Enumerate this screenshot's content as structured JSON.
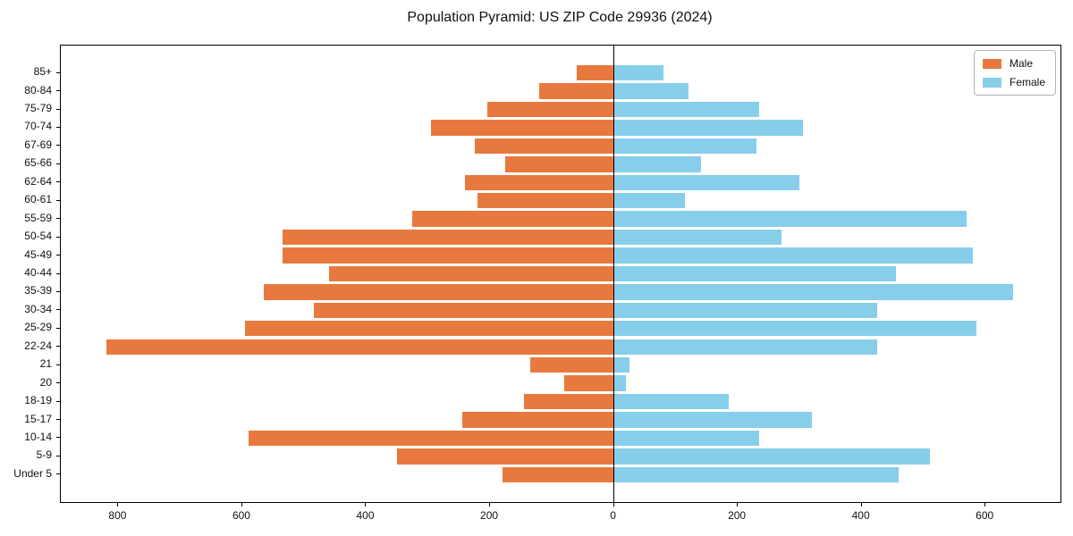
{
  "title": "Population Pyramid: US ZIP Code 29936 (2024)",
  "legend": {
    "male": "Male",
    "female": "Female"
  },
  "colors": {
    "male": "#e8793e",
    "female": "#87ceeb",
    "axis": "#000000"
  },
  "chart_data": {
    "type": "bar",
    "subtype": "population-pyramid",
    "title": "Population Pyramid: US ZIP Code 29936 (2024)",
    "categories": [
      "85+",
      "80-84",
      "75-79",
      "70-74",
      "67-69",
      "65-66",
      "62-64",
      "60-61",
      "55-59",
      "50-54",
      "45-49",
      "40-44",
      "35-39",
      "30-34",
      "25-29",
      "22-24",
      "21",
      "20",
      "18-19",
      "15-17",
      "10-14",
      "5-9",
      "Under 5"
    ],
    "series": [
      {
        "name": "Male",
        "side": "left",
        "color": "#e8793e",
        "values": [
          60,
          120,
          205,
          295,
          225,
          175,
          240,
          220,
          325,
          535,
          535,
          460,
          565,
          485,
          595,
          820,
          135,
          80,
          145,
          245,
          590,
          350,
          180
        ]
      },
      {
        "name": "Female",
        "side": "right",
        "color": "#87ceeb",
        "values": [
          80,
          120,
          235,
          305,
          230,
          140,
          300,
          115,
          570,
          270,
          580,
          455,
          645,
          425,
          585,
          425,
          25,
          20,
          185,
          320,
          235,
          510,
          460
        ]
      }
    ],
    "x_ticks": [
      -800,
      -600,
      -400,
      -200,
      0,
      200,
      400,
      600
    ],
    "x_tick_labels": [
      "800",
      "600",
      "400",
      "200",
      "0",
      "200",
      "400",
      "600"
    ],
    "xlim": [
      -893,
      721
    ],
    "grid": false,
    "legend_position": "upper right",
    "zero_line": true
  }
}
